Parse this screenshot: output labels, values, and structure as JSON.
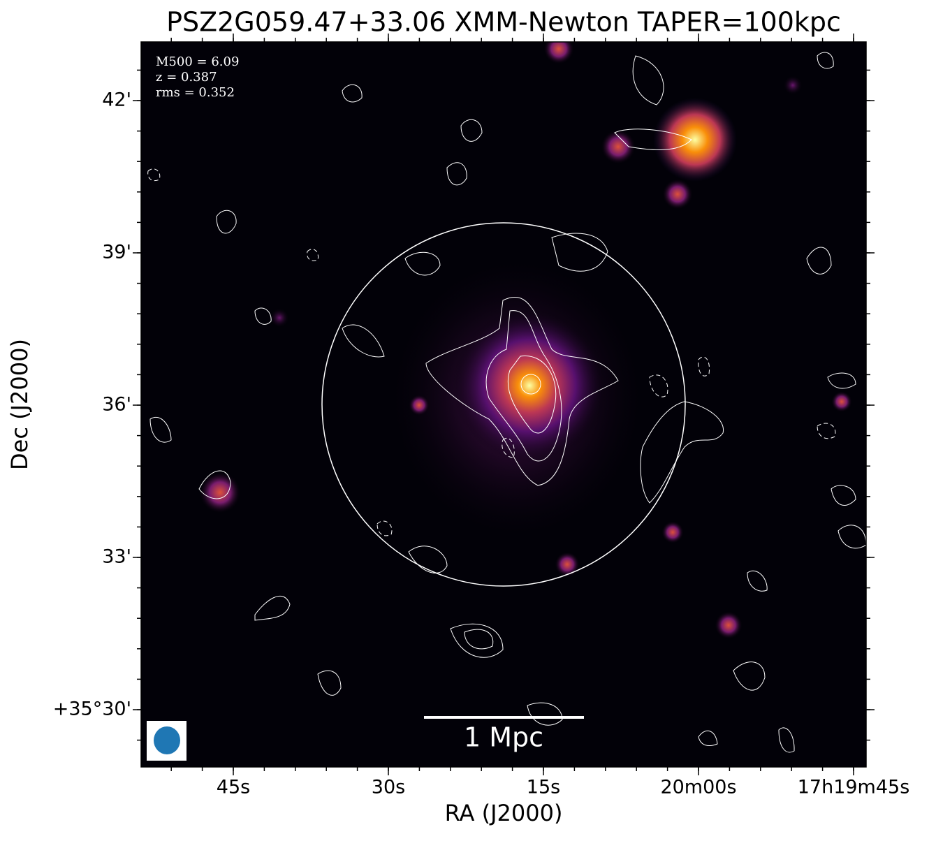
{
  "chart_data": {
    "type": "image",
    "title": "PSZ2G059.47+33.06 XMM-Newton TAPER=100kpc",
    "xlabel": "RA (J2000)",
    "ylabel": "Dec (J2000)",
    "xtick_labels": [
      "45s",
      "30s",
      "15s",
      "20m00s",
      "17h19m45s"
    ],
    "ytick_labels": [
      "42'",
      "39'",
      "36'",
      "33'",
      "+35°30'"
    ],
    "annotations": [
      "M500 = 6.09",
      "z = 0.387",
      "rms = 0.352"
    ],
    "scalebar_label": "1 Mpc"
  }
}
